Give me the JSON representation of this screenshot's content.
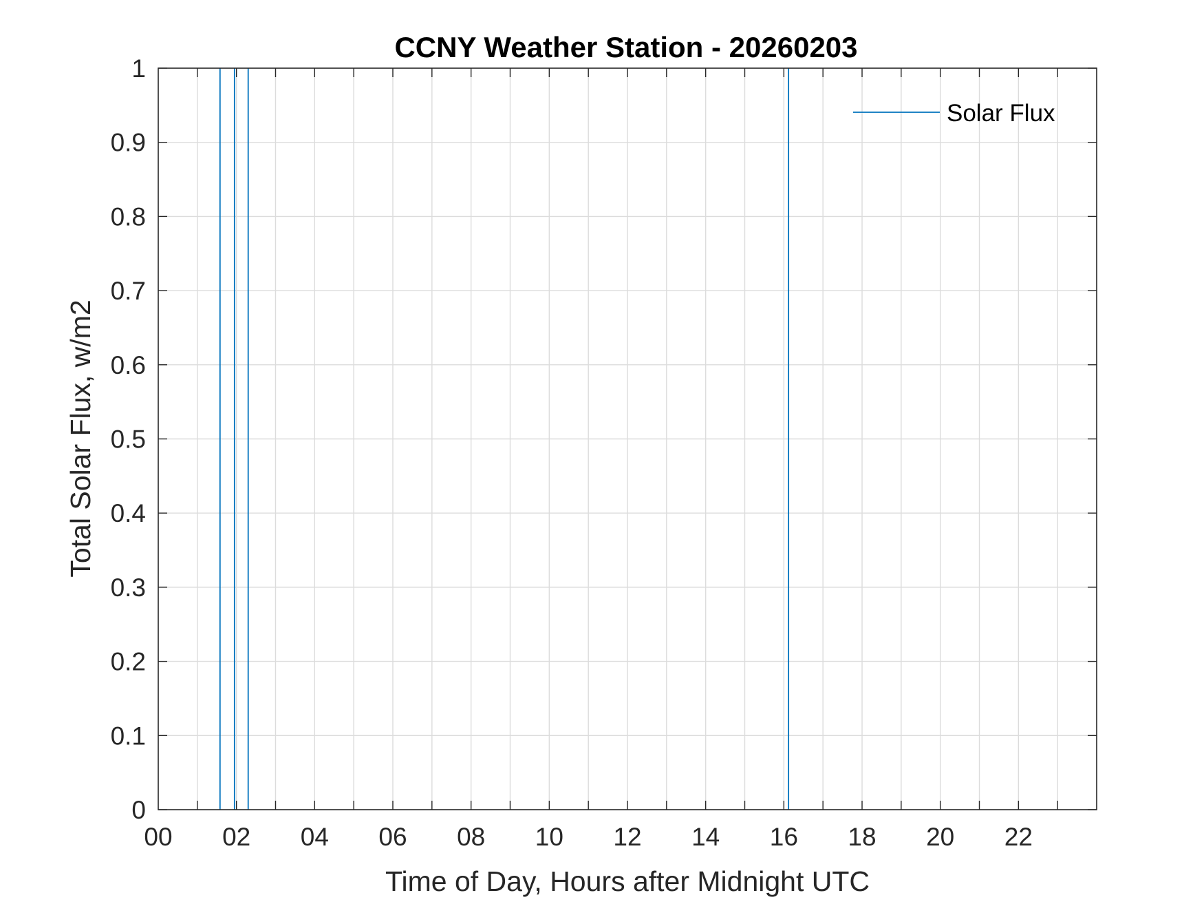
{
  "chart_data": {
    "type": "line",
    "title": "CCNY Weather Station - 20260203",
    "xlabel": "Time of Day, Hours after Midnight UTC",
    "ylabel": "Total Solar Flux, w/m2",
    "xlim": [
      0,
      24
    ],
    "ylim": [
      0,
      1
    ],
    "x_ticks": [
      0,
      2,
      4,
      6,
      8,
      10,
      12,
      14,
      16,
      18,
      20,
      22
    ],
    "x_tick_labels": [
      "00",
      "02",
      "04",
      "06",
      "08",
      "10",
      "12",
      "14",
      "16",
      "18",
      "20",
      "22"
    ],
    "y_ticks": [
      0,
      0.1,
      0.2,
      0.3,
      0.4,
      0.5,
      0.6,
      0.7,
      0.8,
      0.9,
      1
    ],
    "y_tick_labels": [
      "0",
      "0.1",
      "0.2",
      "0.3",
      "0.4",
      "0.5",
      "0.6",
      "0.7",
      "0.8",
      "0.9",
      "1"
    ],
    "grid": true,
    "legend_position": "top-right",
    "series": [
      {
        "name": "Solar Flux",
        "color": "#0072BD",
        "spikes_x": [
          1.58,
          1.95,
          2.3,
          16.12
        ]
      }
    ]
  }
}
